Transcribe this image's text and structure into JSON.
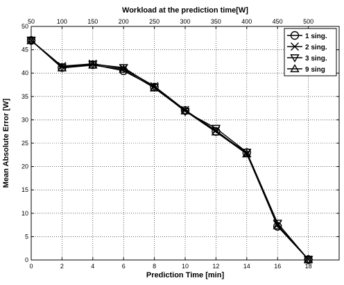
{
  "chart_data": {
    "type": "line",
    "xlabel": "Prediction Time [min]",
    "ylabel": "Mean Absolute Error [W]",
    "x2label": "Workload at the prediction time[W]",
    "x": [
      0,
      2,
      4,
      6,
      8,
      10,
      12,
      14,
      16,
      18
    ],
    "xlim": [
      0,
      20
    ],
    "ylim": [
      0,
      50
    ],
    "xticks": [
      "0",
      "2",
      "4",
      "6",
      "8",
      "10",
      "12",
      "14",
      "16",
      "18"
    ],
    "yticks": [
      "0",
      "5",
      "10",
      "15",
      "20",
      "25",
      "30",
      "35",
      "40",
      "45",
      "50"
    ],
    "x2ticks": [
      "50",
      "100",
      "150",
      "200",
      "250",
      "300",
      "350",
      "400",
      "450",
      "500"
    ],
    "grid": true,
    "legend_position": "top-right",
    "series": [
      {
        "name": "1 sing.",
        "marker": "circle",
        "values": [
          47,
          41.2,
          41.8,
          40.5,
          37,
          32,
          27.5,
          23,
          7.2,
          0.1
        ]
      },
      {
        "name": "2 sing.",
        "marker": "x",
        "values": [
          47,
          41.5,
          42,
          41,
          37.2,
          32.1,
          27.7,
          22.8,
          7.5,
          0.1
        ]
      },
      {
        "name": "3 sing.",
        "marker": "triangle-down",
        "values": [
          47,
          41.3,
          41.9,
          41.2,
          37,
          31.8,
          28.2,
          23.1,
          7.9,
          0.1
        ]
      },
      {
        "name": "9 sing",
        "marker": "triangle-up",
        "values": [
          47,
          41.1,
          41.7,
          40.8,
          36.8,
          31.9,
          27.4,
          22.7,
          7.3,
          0.1
        ]
      }
    ]
  }
}
